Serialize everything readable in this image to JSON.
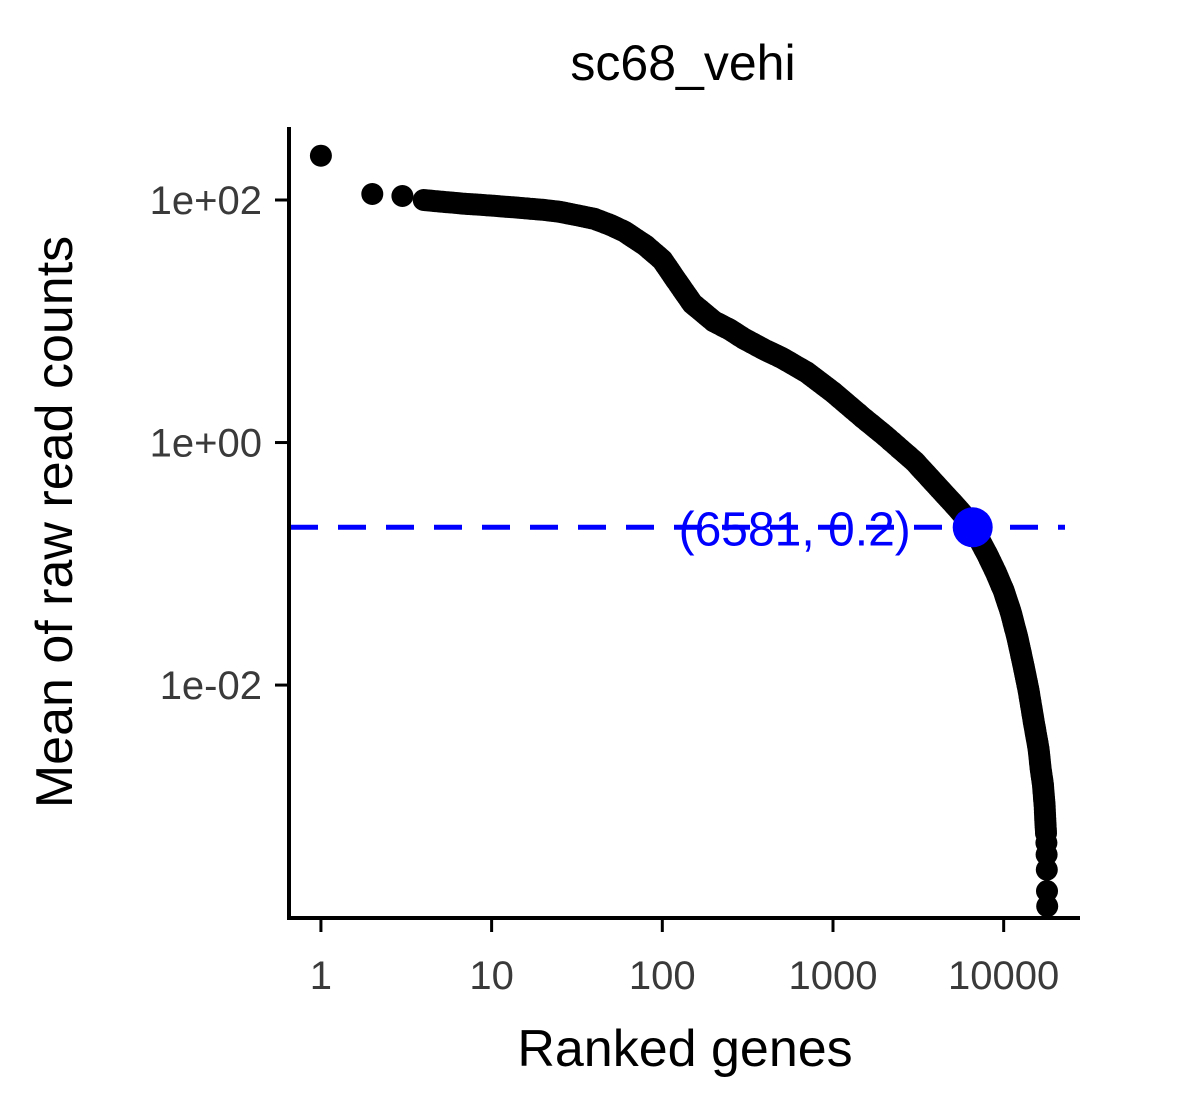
{
  "chart_data": {
    "type": "scatter",
    "title": "sc68_vehi",
    "xlabel": "Ranked genes",
    "ylabel": "Mean of raw read counts",
    "x_scale": "log10",
    "y_scale": "log10",
    "xlim": [
      0.65,
      28000
    ],
    "ylim": [
      0.00012,
      400
    ],
    "x_ticks": [
      {
        "value": 1,
        "label": "1"
      },
      {
        "value": 10,
        "label": "10"
      },
      {
        "value": 100,
        "label": "100"
      },
      {
        "value": 1000,
        "label": "1000"
      },
      {
        "value": 10000,
        "label": "10000"
      }
    ],
    "y_ticks": [
      {
        "value": 0.01,
        "label": "1e-02"
      },
      {
        "value": 1,
        "label": "1e+00"
      },
      {
        "value": 100,
        "label": "1e+02"
      }
    ],
    "grid": false,
    "points_color": "#000000",
    "points": [
      [
        1,
        232
      ],
      [
        2,
        112
      ],
      [
        3,
        108
      ],
      [
        4,
        100
      ],
      [
        5,
        97
      ],
      [
        6,
        95
      ],
      [
        7,
        93
      ],
      [
        8,
        92
      ],
      [
        10,
        90
      ],
      [
        12,
        88
      ],
      [
        15,
        86
      ],
      [
        20,
        83
      ],
      [
        25,
        80
      ],
      [
        30,
        76
      ],
      [
        40,
        70
      ],
      [
        50,
        62
      ],
      [
        60,
        55
      ],
      [
        80,
        42
      ],
      [
        100,
        32
      ],
      [
        120,
        22
      ],
      [
        150,
        14
      ],
      [
        200,
        10
      ],
      [
        250,
        8.5
      ],
      [
        300,
        7.2
      ],
      [
        400,
        5.8
      ],
      [
        500,
        5.0
      ],
      [
        700,
        3.8
      ],
      [
        1000,
        2.6
      ],
      [
        1500,
        1.6
      ],
      [
        2000,
        1.15
      ],
      [
        3000,
        0.7
      ],
      [
        4000,
        0.45
      ],
      [
        5000,
        0.32
      ],
      [
        6000,
        0.24
      ],
      [
        6581,
        0.2
      ],
      [
        7000,
        0.17
      ],
      [
        8000,
        0.12
      ],
      [
        9000,
        0.085
      ],
      [
        10000,
        0.06
      ],
      [
        11000,
        0.04
      ],
      [
        12000,
        0.025
      ],
      [
        13000,
        0.015
      ],
      [
        14000,
        0.009
      ],
      [
        15000,
        0.005
      ],
      [
        16000,
        0.003
      ],
      [
        16500,
        0.002
      ],
      [
        17000,
        0.0015
      ],
      [
        17200,
        0.0012
      ],
      [
        17400,
        0.001
      ],
      [
        17500,
        0.0008
      ],
      [
        17600,
        0.0007
      ],
      [
        17700,
        0.0006
      ],
      [
        17800,
        0.0005
      ],
      [
        17850,
        0.0004
      ],
      [
        17900,
        0.0003
      ],
      [
        17950,
        0.0002
      ],
      [
        18000,
        0.00015
      ]
    ],
    "threshold": {
      "y": 0.2,
      "x": 6581,
      "color": "#0000ff",
      "style": "dashed",
      "label": "(6581, 0.2)"
    }
  }
}
